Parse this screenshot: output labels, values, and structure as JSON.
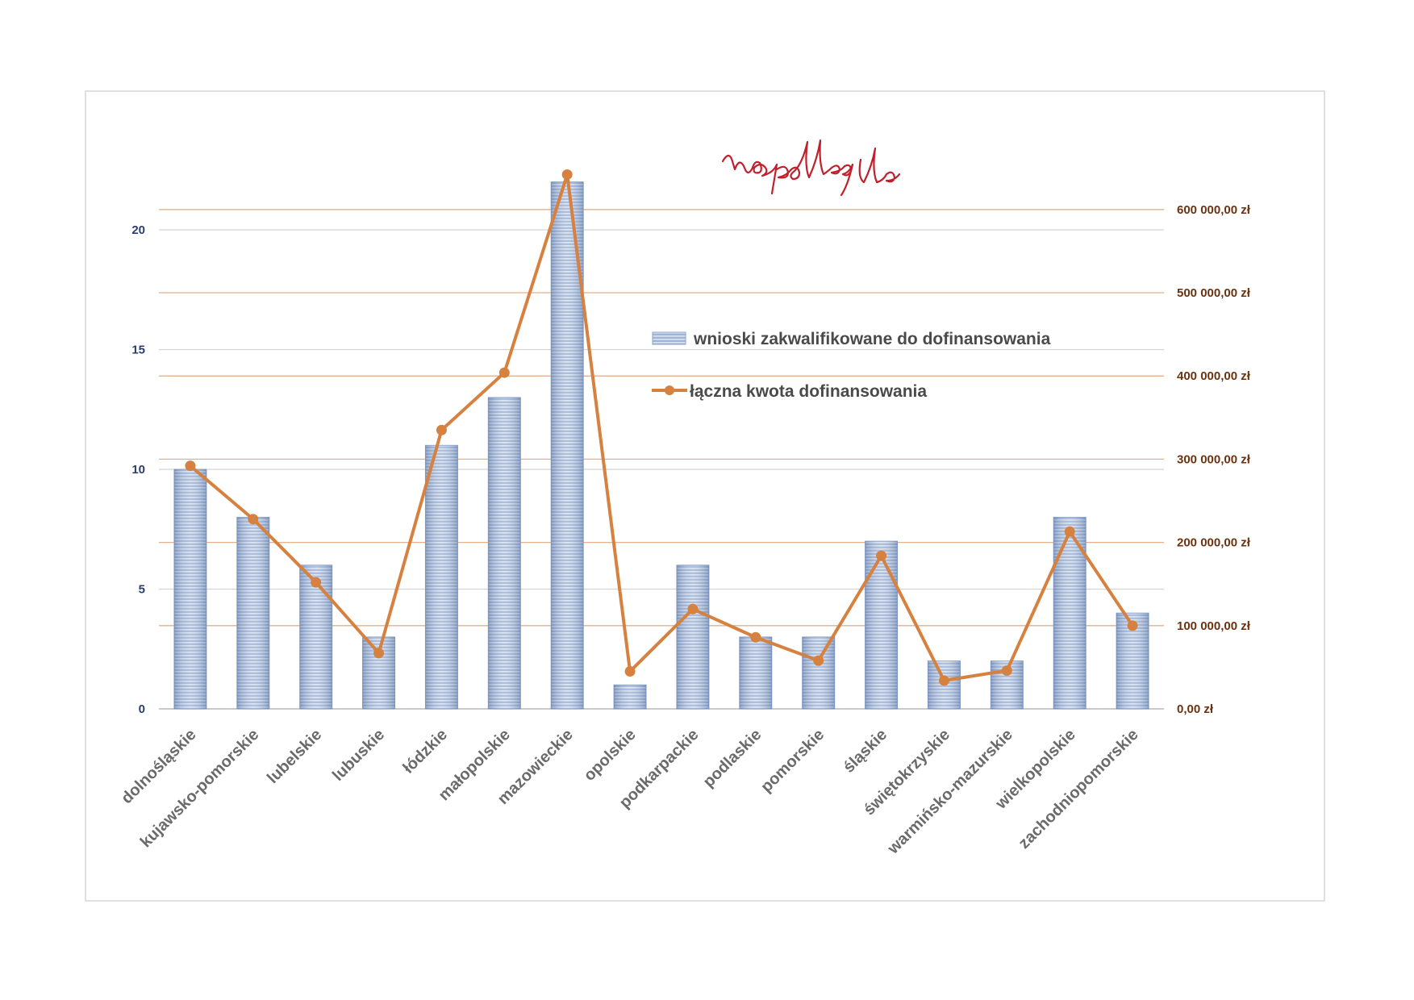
{
  "logo_text": "niepodległa",
  "colors": {
    "bar_fill": "#9fb5d8",
    "bar_stripe": "#d9e3f2",
    "line": "#d6813f",
    "left_axis_text": "#2a3f6e",
    "right_axis_text": "#6b3310",
    "logo": "#c21f2c"
  },
  "chart_data": {
    "type": "bar",
    "title": "",
    "xlabel": "",
    "ylabel": "",
    "grid": true,
    "legend_position": "center-right",
    "categories": [
      "dolnośląskie",
      "kujawsko-pomorskie",
      "lubelskie",
      "lubuskie",
      "łódzkie",
      "małopolskie",
      "mazowieckie",
      "opolskie",
      "podkarpackie",
      "podlaskie",
      "pomorskie",
      "śląskie",
      "świętokrzyskie",
      "warmińsko-mazurskie",
      "wielkopolskie",
      "zachodniopomorskie"
    ],
    "series": [
      {
        "name": "wnioski zakwalifikowane do dofinansowania",
        "type": "bar",
        "axis": "left",
        "values": [
          10,
          8,
          6,
          3,
          11,
          13,
          22,
          1,
          6,
          3,
          3,
          7,
          2,
          2,
          8,
          4
        ]
      },
      {
        "name": "łączna kwota dofinansowania",
        "type": "line",
        "axis": "right",
        "values": [
          292000,
          228000,
          152000,
          67000,
          335000,
          404000,
          642000,
          45000,
          120000,
          86000,
          58000,
          184000,
          34000,
          46000,
          213000,
          100000
        ]
      }
    ],
    "y_left": {
      "ylim": [
        0,
        22
      ],
      "ticks": [
        0,
        5,
        10,
        15,
        20
      ],
      "tick_labels": [
        "0",
        "5",
        "10",
        "15",
        "20"
      ]
    },
    "y_right": {
      "ylim": [
        0,
        600000
      ],
      "ticks": [
        0,
        100000,
        200000,
        300000,
        400000,
        500000,
        600000
      ],
      "tick_labels": [
        "0,00 zł",
        "100 000,00 zł",
        "200 000,00 zł",
        "300 000,00 zł",
        "400 000,00 zł",
        "500 000,00 zł",
        "600 000,00 zł"
      ]
    }
  }
}
